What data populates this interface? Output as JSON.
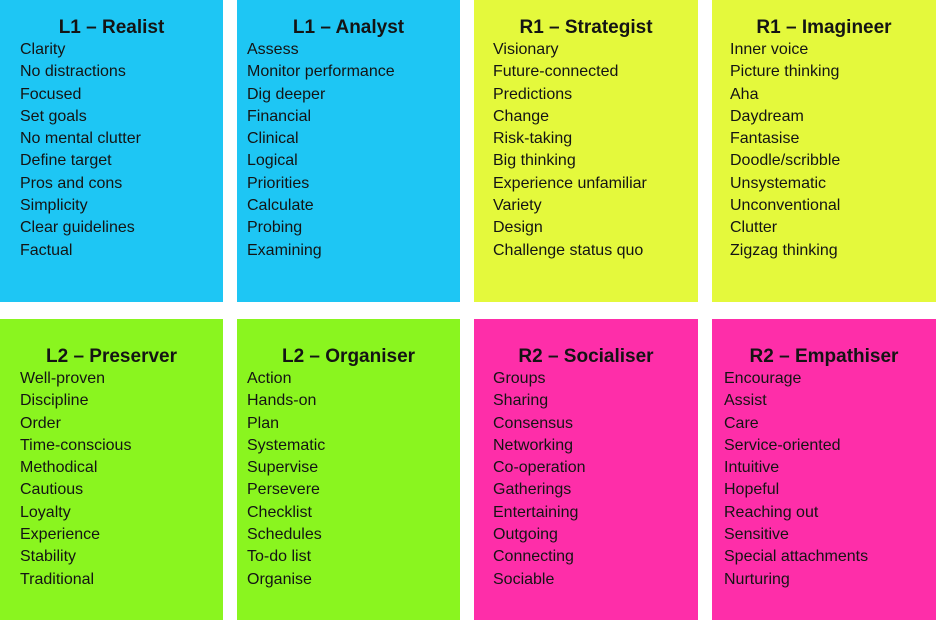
{
  "colors": {
    "blue": "#1ec6f4",
    "yellow": "#e4f93c",
    "green": "#8af51f",
    "pink": "#fe2ea9"
  },
  "boxes": [
    {
      "title": "L1 – Realist",
      "items": [
        "Clarity",
        "No distractions",
        "Focused",
        "Set goals",
        "No mental clutter",
        "Define target",
        "Pros and cons",
        "Simplicity",
        "Clear guidelines",
        "Factual"
      ]
    },
    {
      "title": "L1 – Analyst",
      "items": [
        "Assess",
        "Monitor performance",
        "Dig deeper",
        "Financial",
        "Clinical",
        "Logical",
        "Priorities",
        "Calculate",
        "Probing",
        "Examining"
      ]
    },
    {
      "title": "R1 – Strategist",
      "items": [
        "Visionary",
        "Future-connected",
        "Predictions",
        "Change",
        "Risk-taking",
        "Big thinking",
        "Experience  unfamiliar",
        "Variety",
        "Design",
        "Challenge status quo"
      ]
    },
    {
      "title": "R1 – Imagineer",
      "items": [
        "Inner voice",
        "Picture thinking",
        "Aha",
        "Daydream",
        "Fantasise",
        "Doodle/scribble",
        "Unsystematic",
        "Unconventional",
        "Clutter",
        "Zigzag thinking"
      ]
    },
    {
      "title": "L2 – Preserver",
      "items": [
        "Well-proven",
        "Discipline",
        "Order",
        "Time-conscious",
        "Methodical",
        "Cautious",
        "Loyalty",
        "Experience",
        "Stability",
        "Traditional"
      ]
    },
    {
      "title": "L2 – Organiser",
      "items": [
        "Action",
        "Hands-on",
        "Plan",
        "Systematic",
        "Supervise",
        "Persevere",
        "Checklist",
        "Schedules",
        "To-do list",
        "Organise"
      ]
    },
    {
      "title": "R2 – Socialiser",
      "items": [
        "Groups",
        "Sharing",
        "Consensus",
        "Networking",
        "Co-operation",
        "Gatherings",
        "Entertaining",
        "Outgoing",
        "Connecting",
        "Sociable"
      ]
    },
    {
      "title": "R2 – Empathiser",
      "items": [
        "Encourage",
        "Assist",
        "Care",
        "Service-oriented",
        "Intuitive",
        "Hopeful",
        "Reaching out",
        "Sensitive",
        "Special attachments",
        "Nurturing"
      ]
    }
  ]
}
